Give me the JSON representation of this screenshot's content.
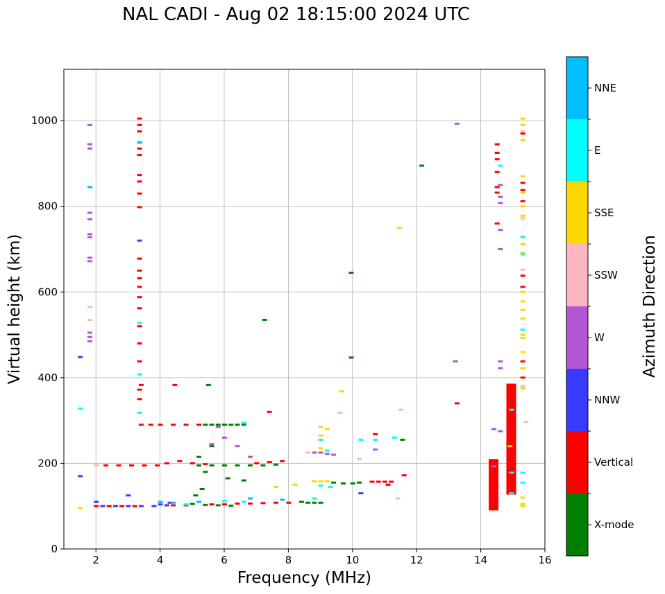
{
  "chart_data": {
    "type": "scatter",
    "title": "NAL CADI - Aug 02 18:15:00 2024 UTC",
    "xlabel": "Frequency (MHz)",
    "ylabel": "Virtual height (km)",
    "xlim": [
      1,
      16
    ],
    "ylim": [
      0,
      1120
    ],
    "xticks": [
      2,
      4,
      6,
      8,
      10,
      12,
      14,
      16
    ],
    "yticks": [
      0,
      200,
      400,
      600,
      800,
      1000
    ],
    "grid": true,
    "colorbar": {
      "label": "Azimuth Direction",
      "categories": [
        {
          "name": "X-mode",
          "color": "#008000"
        },
        {
          "name": "Vertical",
          "color": "#ff0000"
        },
        {
          "name": "NNW",
          "color": "#3a3aff"
        },
        {
          "name": "W",
          "color": "#b455d6"
        },
        {
          "name": "SSW",
          "color": "#ffb6c1"
        },
        {
          "name": "SSE",
          "color": "#ffd700"
        },
        {
          "name": "E",
          "color": "#00ffff"
        },
        {
          "name": "NNE",
          "color": "#00bfff"
        }
      ]
    },
    "series": [
      {
        "name": "X-mode",
        "points": [
          [
            5.4,
            290
          ],
          [
            5.6,
            290
          ],
          [
            5.8,
            290
          ],
          [
            6.0,
            290
          ],
          [
            6.2,
            290
          ],
          [
            6.4,
            290
          ],
          [
            6.6,
            290
          ],
          [
            5.2,
            195
          ],
          [
            5.6,
            195
          ],
          [
            6.0,
            195
          ],
          [
            6.4,
            195
          ],
          [
            6.8,
            195
          ],
          [
            7.2,
            195
          ],
          [
            7.6,
            197
          ],
          [
            5.0,
            105
          ],
          [
            5.4,
            103
          ],
          [
            5.8,
            102
          ],
          [
            6.2,
            101
          ],
          [
            8.4,
            110
          ],
          [
            8.6,
            108
          ],
          [
            8.8,
            108
          ],
          [
            9.0,
            108
          ],
          [
            9.4,
            155
          ],
          [
            9.7,
            153
          ],
          [
            10.0,
            153
          ],
          [
            10.2,
            155
          ],
          [
            5.6,
            240
          ],
          [
            5.2,
            215
          ],
          [
            5.4,
            180
          ],
          [
            6.1,
            165
          ],
          [
            6.6,
            160
          ],
          [
            5.1,
            125
          ],
          [
            5.3,
            140
          ],
          [
            7.25,
            535
          ],
          [
            9.95,
            645
          ],
          [
            9.95,
            447
          ],
          [
            12.15,
            895
          ],
          [
            5.5,
            383
          ],
          [
            11.55,
            255
          ]
        ]
      },
      {
        "name": "Vertical",
        "points": [
          [
            3.35,
            1005
          ],
          [
            3.35,
            990
          ],
          [
            3.35,
            975
          ],
          [
            3.35,
            935
          ],
          [
            3.35,
            920
          ],
          [
            3.35,
            873
          ],
          [
            3.35,
            858
          ],
          [
            3.35,
            830
          ],
          [
            3.35,
            798
          ],
          [
            3.35,
            678
          ],
          [
            3.35,
            650
          ],
          [
            3.35,
            632
          ],
          [
            3.35,
            612
          ],
          [
            3.35,
            588
          ],
          [
            3.35,
            562
          ],
          [
            3.35,
            520
          ],
          [
            3.35,
            480
          ],
          [
            3.35,
            438
          ],
          [
            3.35,
            372
          ],
          [
            3.35,
            350
          ],
          [
            3.4,
            383
          ],
          [
            3.4,
            290
          ],
          [
            3.7,
            290
          ],
          [
            4.0,
            290
          ],
          [
            4.4,
            290
          ],
          [
            4.8,
            290
          ],
          [
            5.2,
            290
          ],
          [
            2.3,
            195
          ],
          [
            2.7,
            195
          ],
          [
            3.1,
            195
          ],
          [
            3.5,
            195
          ],
          [
            3.9,
            195
          ],
          [
            4.2,
            200
          ],
          [
            4.6,
            205
          ],
          [
            5.0,
            200
          ],
          [
            5.4,
            198
          ],
          [
            2.0,
            100
          ],
          [
            2.4,
            100
          ],
          [
            2.8,
            100
          ],
          [
            3.2,
            100
          ],
          [
            4.4,
            102
          ],
          [
            4.8,
            102
          ],
          [
            5.6,
            104
          ],
          [
            6.0,
            104
          ],
          [
            6.4,
            106
          ],
          [
            6.8,
            106
          ],
          [
            7.2,
            107
          ],
          [
            7.6,
            108
          ],
          [
            8.0,
            108
          ],
          [
            7.0,
            200
          ],
          [
            7.4,
            203
          ],
          [
            7.8,
            205
          ],
          [
            10.6,
            157
          ],
          [
            10.8,
            157
          ],
          [
            11.0,
            157
          ],
          [
            11.2,
            157
          ],
          [
            11.6,
            172
          ],
          [
            11.1,
            150
          ],
          [
            7.4,
            320
          ],
          [
            10.7,
            268
          ],
          [
            13.25,
            340
          ],
          [
            4.45,
            383
          ],
          [
            14.5,
            945
          ],
          [
            14.5,
            925
          ],
          [
            14.5,
            910
          ],
          [
            14.5,
            880
          ],
          [
            14.5,
            845
          ],
          [
            14.5,
            832
          ],
          [
            14.5,
            760
          ],
          [
            15.3,
            970
          ],
          [
            15.3,
            855
          ],
          [
            15.3,
            838
          ],
          [
            15.3,
            812
          ],
          [
            15.3,
            638
          ],
          [
            15.3,
            612
          ],
          [
            15.3,
            438
          ],
          [
            15.3,
            400
          ]
        ]
      },
      {
        "name": "NNW",
        "points": [
          [
            1.5,
            448
          ],
          [
            1.5,
            170
          ],
          [
            2.2,
            100
          ],
          [
            2.6,
            100
          ],
          [
            3.0,
            100
          ],
          [
            3.4,
            100
          ],
          [
            3.8,
            100
          ],
          [
            4.2,
            102
          ],
          [
            3.35,
            720
          ],
          [
            3.0,
            125
          ],
          [
            4.3,
            108
          ],
          [
            10.25,
            130
          ],
          [
            2.0,
            110
          ],
          [
            4.0,
            104
          ]
        ]
      },
      {
        "name": "W",
        "points": [
          [
            1.8,
            990
          ],
          [
            1.8,
            945
          ],
          [
            1.8,
            935
          ],
          [
            1.8,
            785
          ],
          [
            1.8,
            770
          ],
          [
            1.8,
            735
          ],
          [
            1.8,
            728
          ],
          [
            1.8,
            680
          ],
          [
            1.8,
            672
          ],
          [
            1.8,
            505
          ],
          [
            1.8,
            495
          ],
          [
            1.8,
            485
          ],
          [
            8.8,
            225
          ],
          [
            9.0,
            225
          ],
          [
            9.2,
            222
          ],
          [
            9.4,
            220
          ],
          [
            5.8,
            285
          ],
          [
            5.6,
            245
          ],
          [
            6.4,
            240
          ],
          [
            6.8,
            215
          ],
          [
            6.0,
            260
          ],
          [
            10.7,
            232
          ],
          [
            13.25,
            993
          ],
          [
            14.4,
            280
          ],
          [
            14.4,
            193
          ],
          [
            14.6,
            275
          ],
          [
            14.6,
            438
          ],
          [
            14.6,
            422
          ],
          [
            14.6,
            850
          ],
          [
            14.6,
            822
          ],
          [
            14.6,
            808
          ],
          [
            14.6,
            745
          ],
          [
            14.6,
            700
          ],
          [
            13.2,
            438
          ]
        ]
      },
      {
        "name": "SSW",
        "points": [
          [
            1.8,
            565
          ],
          [
            1.8,
            535
          ],
          [
            2.0,
            195
          ],
          [
            8.6,
            225
          ],
          [
            10.2,
            210
          ],
          [
            11.5,
            325
          ],
          [
            11.4,
            118
          ],
          [
            15.3,
            975
          ],
          [
            15.3,
            772
          ],
          [
            15.3,
            652
          ],
          [
            15.3,
            380
          ],
          [
            15.4,
            297
          ],
          [
            9.6,
            318
          ]
        ]
      },
      {
        "name": "SSE",
        "points": [
          [
            11.45,
            750
          ],
          [
            9.65,
            368
          ],
          [
            9.0,
            285
          ],
          [
            9.2,
            280
          ],
          [
            9.0,
            265
          ],
          [
            9.0,
            235
          ],
          [
            8.8,
            158
          ],
          [
            9.0,
            158
          ],
          [
            9.2,
            158
          ],
          [
            8.2,
            150
          ],
          [
            7.6,
            145
          ],
          [
            1.5,
            95
          ],
          [
            14.9,
            240
          ],
          [
            15.3,
            1005
          ],
          [
            15.3,
            990
          ],
          [
            15.3,
            955
          ],
          [
            15.3,
            870
          ],
          [
            15.3,
            832
          ],
          [
            15.3,
            800
          ],
          [
            15.3,
            778
          ],
          [
            15.3,
            730
          ],
          [
            15.3,
            712
          ],
          [
            15.3,
            692
          ],
          [
            15.3,
            600
          ],
          [
            15.3,
            578
          ],
          [
            15.3,
            558
          ],
          [
            15.3,
            538
          ],
          [
            15.3,
            500
          ],
          [
            15.3,
            493
          ],
          [
            15.3,
            460
          ],
          [
            15.3,
            422
          ],
          [
            15.3,
            375
          ],
          [
            15.3,
            120
          ],
          [
            15.3,
            105
          ],
          [
            15.3,
            100
          ]
        ]
      },
      {
        "name": "E",
        "points": [
          [
            1.5,
            328
          ],
          [
            3.35,
            948
          ],
          [
            3.35,
            528
          ],
          [
            3.35,
            408
          ],
          [
            3.35,
            318
          ],
          [
            6.6,
            295
          ],
          [
            9.0,
            255
          ],
          [
            9.2,
            230
          ],
          [
            10.25,
            255
          ],
          [
            10.7,
            255
          ],
          [
            11.3,
            260
          ],
          [
            9.0,
            148
          ],
          [
            9.3,
            145
          ],
          [
            8.8,
            118
          ],
          [
            6.6,
            110
          ],
          [
            6.0,
            112
          ],
          [
            4.8,
            104
          ],
          [
            15.3,
            728
          ],
          [
            15.3,
            688
          ],
          [
            15.3,
            512
          ],
          [
            15.3,
            178
          ],
          [
            15.3,
            155
          ],
          [
            14.95,
            325
          ],
          [
            14.95,
            178
          ],
          [
            14.95,
            130
          ],
          [
            14.6,
            895
          ]
        ]
      },
      {
        "name": "NNE",
        "points": [
          [
            1.8,
            845
          ],
          [
            4.0,
            110
          ],
          [
            4.4,
            108
          ],
          [
            5.2,
            110
          ],
          [
            6.8,
            118
          ],
          [
            7.8,
            115
          ],
          [
            3.35,
            950
          ]
        ]
      }
    ],
    "columns": [
      {
        "x": 14.4,
        "ymin": 90,
        "ymax": 210,
        "series": "Vertical"
      },
      {
        "x": 14.95,
        "ymin": 127,
        "ymax": 386,
        "series": "Vertical"
      }
    ]
  }
}
